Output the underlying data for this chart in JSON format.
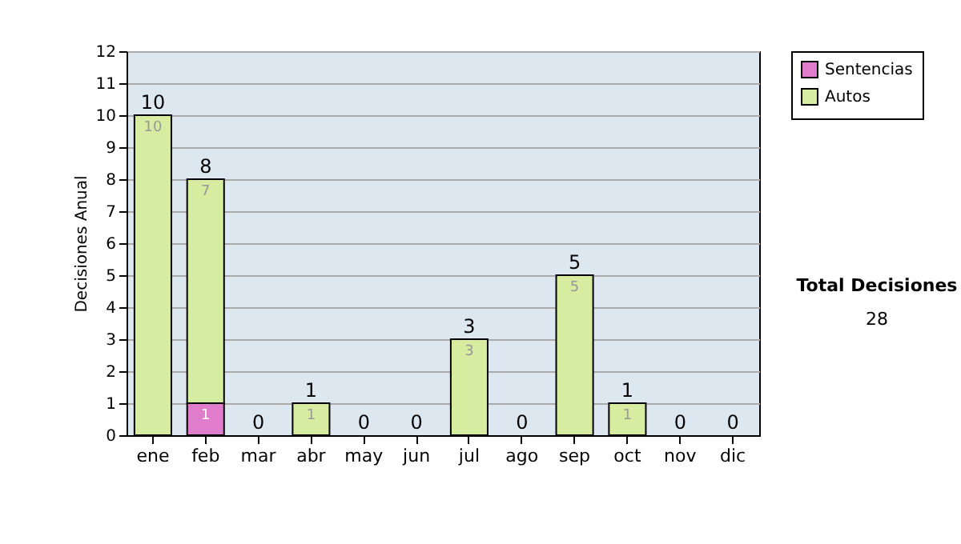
{
  "chart_data": {
    "type": "bar",
    "stacked": true,
    "ylabel": "Decisiones Anual",
    "categories": [
      "ene",
      "feb",
      "mar",
      "abr",
      "may",
      "jun",
      "jul",
      "ago",
      "sep",
      "oct",
      "nov",
      "dic"
    ],
    "series": [
      {
        "name": "Sentencias",
        "color": "#e07ccc",
        "values": [
          0,
          1,
          0,
          0,
          0,
          0,
          0,
          0,
          0,
          0,
          0,
          0
        ],
        "value_labels": [
          null,
          "1",
          null,
          null,
          null,
          null,
          null,
          null,
          null,
          null,
          null,
          null
        ]
      },
      {
        "name": "Autos",
        "color": "#d6eca0",
        "values": [
          10,
          7,
          0,
          1,
          0,
          0,
          3,
          0,
          5,
          1,
          0,
          0
        ],
        "value_labels": [
          "10",
          "7",
          null,
          "1",
          null,
          null,
          "3",
          null,
          "5",
          "1",
          null,
          null
        ]
      }
    ],
    "totals": [
      "10",
      "8",
      "0",
      "1",
      "0",
      "0",
      "3",
      "0",
      "5",
      "1",
      "0",
      "0"
    ],
    "ylim": [
      0,
      12
    ],
    "yticks": [
      0,
      1,
      2,
      3,
      4,
      5,
      6,
      7,
      8,
      9,
      10,
      11,
      12
    ],
    "grid": "y",
    "legend": "right",
    "annotations": [
      "Total Decisiones",
      "28"
    ]
  }
}
